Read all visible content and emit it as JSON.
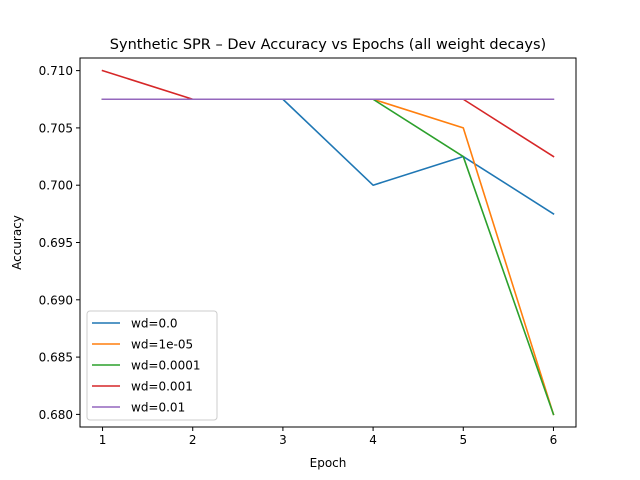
{
  "chart_data": {
    "type": "line",
    "title": "Synthetic SPR – Dev Accuracy vs Epochs (all weight decays)",
    "xlabel": "Epoch",
    "ylabel": "Accuracy",
    "x": [
      1,
      2,
      3,
      4,
      5,
      6
    ],
    "xlim": [
      0.75,
      6.25
    ],
    "ylim": [
      0.6789,
      0.7111
    ],
    "xticks": [
      1,
      2,
      3,
      4,
      5,
      6
    ],
    "yticks": [
      0.68,
      0.685,
      0.69,
      0.695,
      0.7,
      0.705,
      0.71
    ],
    "ytick_labels": [
      "0.680",
      "0.685",
      "0.690",
      "0.695",
      "0.700",
      "0.705",
      "0.710"
    ],
    "grid": false,
    "legend_position": "lower-left",
    "series": [
      {
        "name": "wd=0.0",
        "color": "#1f77b4",
        "values": [
          0.7075,
          0.7075,
          0.7075,
          0.7,
          0.7025,
          0.6975
        ]
      },
      {
        "name": "wd=1e-05",
        "color": "#ff7f0e",
        "values": [
          0.7075,
          0.7075,
          0.7075,
          0.7075,
          0.705,
          0.68
        ]
      },
      {
        "name": "wd=0.0001",
        "color": "#2ca02c",
        "values": [
          0.7075,
          0.7075,
          0.7075,
          0.7075,
          0.7025,
          0.68
        ]
      },
      {
        "name": "wd=0.001",
        "color": "#d62728",
        "values": [
          0.71,
          0.7075,
          0.7075,
          0.7075,
          0.7075,
          0.7025
        ]
      },
      {
        "name": "wd=0.01",
        "color": "#9467bd",
        "values": [
          0.7075,
          0.7075,
          0.7075,
          0.7075,
          0.7075,
          0.7075
        ]
      }
    ]
  }
}
